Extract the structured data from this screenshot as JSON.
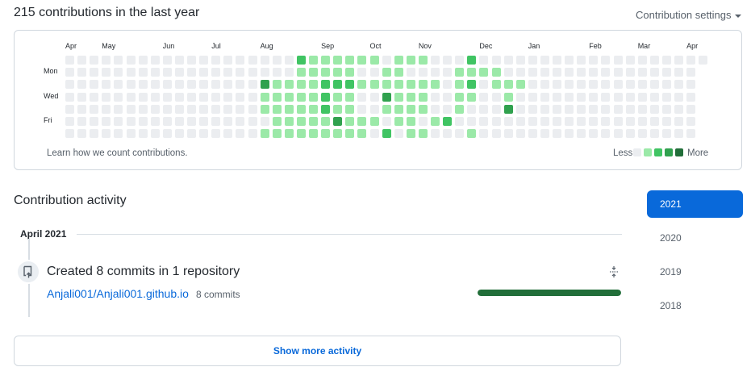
{
  "header": {
    "title": "215 contributions in the last year",
    "settings_label": "Contribution settings"
  },
  "calendar": {
    "months": [
      "Apr",
      "May",
      "Jun",
      "Jul",
      "Aug",
      "Sep",
      "Oct",
      "Nov",
      "Dec",
      "Jan",
      "Feb",
      "Mar",
      "Apr"
    ],
    "month_weeks": [
      0,
      3,
      8,
      12,
      16,
      21,
      25,
      29,
      34,
      38,
      43,
      47,
      51
    ],
    "days": [
      "Mon",
      "Wed",
      "Fri"
    ],
    "levels": [
      "0000000000000000010000000000000000000000000000000000000000000000",
      "0000000000000000000000000000000000000000000000000000000000000000",
      "0000000000000000000000000000000000000000000000000000000000000000",
      "0000000000000000000000000000000000000000000000000000000000000000",
      "0000000000000000000000000000000000000000000000000000000000000000",
      "0000000000000000000000000000000000000000000000000000000000000000",
      "0000000000000000000000000000000000000000000000000000000000000000",
      "0000000000000000000000000000000000000000000000000000000000000000",
      "0000000000000000000000000000000000000000000000000000000000000000",
      "0000000000000000000000000000000000000000000000000000000000000000",
      "0000000000000000000000000000000000000000000000000000000000000000",
      "0000000000000000000000000000000000000000000000000000000000000000",
      "0000000000000000000000000000000000000000000000000000000000000000",
      "0000000000000000000000000000000000000000000000000000000000000000",
      "0000000000000000000000000000000000000000000000000000000000000000",
      "0000000000000000000000000000000000000000000000000000000000000000",
      "0000000000000000000000000000000000000000000000000000000000000000",
      "0000000000000000000000000000000000000000000000000000000000000000",
      "0000000000000000000000000000000000000000000000000000000000000000",
      "0000000000000000000000000000000000000000000000000000000000000000",
      "0000000000000000000000000000000000000000000000000000000000000000",
      "0000000000000000000000000000000000000000000000000000000000000000",
      "0000000000000000000000000000000000000000000000000000000000000000",
      "0000000000000000000000000000000000000000000000000000000000000000",
      "0000000000000000000000000000000000000000000000000000000000000000",
      "0000000000000000000000000000000000000000000000000000000000000000",
      "0000000000000000000000000000000000000000000000000000000000000000",
      "0000000000000000000000000000000000000000000000000000000000000000",
      "0000000000000000000000000000000000000000000000000000000000000000",
      "0000000000000000000000000000000000000000000000000000000000000000",
      "0000000000000000000000000000000000000000000000000000000000000000",
      "0000000000000000000000000000000000000000000000000000000000000000",
      "0000000000000000000000000000000000000000000000000000000000000000",
      "0000000000000000000000000000000000000000000000000000000000000000",
      "0000000000000000000000000000000000000000000000000000000000000000",
      "0000000000000000000000000000000000000000000000000000000000000000",
      "0000000000000000000000000000000000000000000000000000000000000000",
      "0000000000000000000000000000000000000000000000000000000000000000",
      "0000000000000000000000000000000000000000000000000000000000000000",
      "0000000000000000000000000000000000000000000000000000000000000000",
      "0000000000000000000000000000000000000000000000000000000000000000",
      "0000000000000000000000000000000000000000000000000000000000000000",
      "0000000000000000000000000000000000000000000000000000000000000000",
      "0000000000000000000000000000000000000000000000000000000000000000",
      "0000000000000000000000000000000000000000000000000000000000000000",
      "0000000000000000000000000000000000000000000000000000000000000000",
      "0000000000000000000000000000000000000000000000000000000000000000",
      "0000000000000000000000000000000000000000000000000000000000000000",
      "0000000000000000000000000000000000000000000000000000000000000000",
      "0000000000000000000000000000000000000000000000000000000000000000",
      "0000000000000000000000000000000000000000000000000000000000000000",
      "0000000000000000000000000000000000000000000000000000000000000000",
      "0000000000000000000000000000000000000000000000000000000000000000"
    ],
    "week_levels": [
      [
        0,
        0,
        0,
        0,
        0,
        0,
        0
      ],
      [
        0,
        0,
        0,
        0,
        0,
        0,
        0
      ],
      [
        0,
        0,
        0,
        0,
        0,
        0,
        0
      ],
      [
        0,
        0,
        0,
        0,
        0,
        0,
        0
      ],
      [
        0,
        0,
        0,
        0,
        0,
        0,
        0
      ],
      [
        0,
        0,
        0,
        0,
        0,
        0,
        0
      ],
      [
        0,
        0,
        0,
        0,
        0,
        0,
        0
      ],
      [
        0,
        0,
        0,
        0,
        0,
        0,
        0
      ],
      [
        0,
        0,
        0,
        0,
        0,
        0,
        0
      ],
      [
        0,
        0,
        0,
        0,
        0,
        0,
        0
      ],
      [
        0,
        0,
        0,
        0,
        0,
        0,
        0
      ],
      [
        0,
        0,
        0,
        0,
        0,
        0,
        0
      ],
      [
        0,
        0,
        0,
        0,
        0,
        0,
        0
      ],
      [
        0,
        0,
        0,
        0,
        0,
        0,
        0
      ],
      [
        0,
        0,
        0,
        0,
        0,
        0,
        0
      ],
      [
        0,
        0,
        0,
        0,
        0,
        0,
        0
      ],
      [
        0,
        0,
        3,
        1,
        1,
        0,
        1
      ],
      [
        0,
        0,
        1,
        1,
        1,
        1,
        1
      ],
      [
        0,
        0,
        1,
        1,
        1,
        1,
        1
      ],
      [
        2,
        1,
        1,
        1,
        1,
        1,
        1
      ],
      [
        1,
        1,
        1,
        1,
        1,
        1,
        1
      ],
      [
        1,
        1,
        2,
        2,
        2,
        1,
        1
      ],
      [
        1,
        1,
        2,
        1,
        1,
        3,
        1
      ],
      [
        1,
        1,
        2,
        1,
        1,
        1,
        1
      ],
      [
        1,
        0,
        1,
        0,
        0,
        1,
        1
      ],
      [
        1,
        0,
        1,
        0,
        0,
        1,
        0
      ],
      [
        0,
        1,
        1,
        3,
        1,
        0,
        2
      ],
      [
        1,
        1,
        1,
        1,
        1,
        1,
        0
      ],
      [
        1,
        0,
        1,
        1,
        1,
        1,
        1
      ],
      [
        1,
        0,
        1,
        1,
        1,
        0,
        1
      ],
      [
        0,
        0,
        1,
        0,
        0,
        1,
        0
      ],
      [
        0,
        0,
        0,
        0,
        0,
        2,
        0
      ],
      [
        0,
        1,
        1,
        1,
        1,
        0,
        0
      ],
      [
        2,
        1,
        2,
        1,
        0,
        0,
        1
      ],
      [
        0,
        1,
        0,
        0,
        0,
        0,
        0
      ],
      [
        0,
        1,
        1,
        0,
        0,
        0,
        0
      ],
      [
        0,
        0,
        1,
        1,
        3,
        0,
        0
      ],
      [
        0,
        0,
        1,
        0,
        0,
        0,
        0
      ],
      [
        0,
        0,
        0,
        0,
        0,
        0,
        0
      ],
      [
        0,
        0,
        0,
        0,
        0,
        0,
        0
      ],
      [
        0,
        0,
        0,
        0,
        0,
        0,
        0
      ],
      [
        0,
        0,
        0,
        0,
        0,
        0,
        0
      ],
      [
        0,
        0,
        0,
        0,
        0,
        0,
        0
      ],
      [
        0,
        0,
        0,
        0,
        0,
        0,
        0
      ],
      [
        0,
        0,
        0,
        0,
        0,
        0,
        0
      ],
      [
        0,
        0,
        0,
        0,
        0,
        0,
        0
      ],
      [
        0,
        0,
        0,
        0,
        0,
        0,
        0
      ],
      [
        0,
        0,
        0,
        0,
        0,
        0,
        0
      ],
      [
        0,
        0,
        0,
        0,
        0,
        0,
        0
      ],
      [
        0,
        0,
        0,
        0,
        0,
        0,
        0
      ],
      [
        0,
        0,
        0,
        0,
        0,
        0,
        0
      ],
      [
        0,
        0,
        0,
        0,
        0,
        0,
        0
      ],
      [
        0,
        0,
        0,
        0,
        0,
        0,
        0
      ]
    ],
    "colors": [
      "#ebedf0",
      "#9be9a8",
      "#40c463",
      "#30a14e",
      "#216e39"
    ],
    "learn_link": "Learn how we count contributions.",
    "legend_less": "Less",
    "legend_more": "More"
  },
  "activity": {
    "title": "Contribution activity",
    "month_heading": "April 2021",
    "commit_summary": "Created 8 commits in 1 repository",
    "repo_name": "Anjali001/Anjali001.github.io",
    "repo_commits": "8 commits",
    "repo_share": 1.0,
    "show_more_label": "Show more activity"
  },
  "years": [
    "2021",
    "2020",
    "2019",
    "2018"
  ],
  "selected_year": "2021"
}
